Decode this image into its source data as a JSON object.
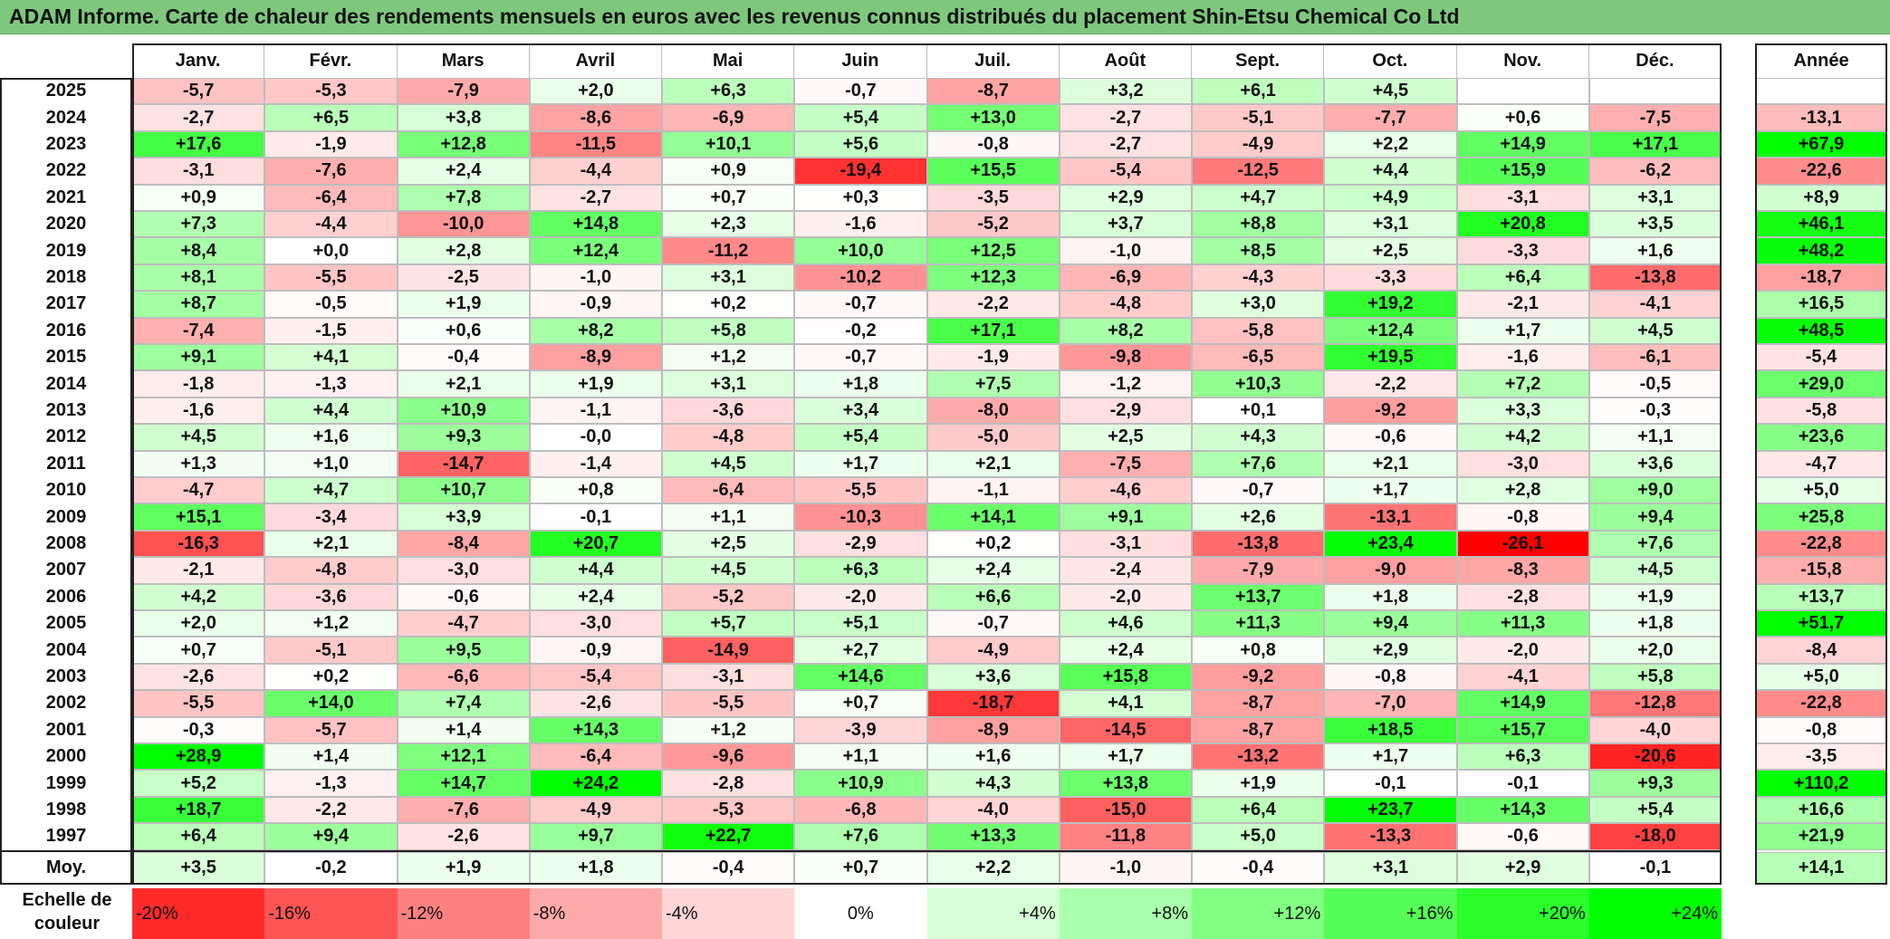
{
  "title": "ADAM Informe. Carte de chaleur des rendements mensuels en euros avec les revenus connus distribués du placement Shin-Etsu Chemical Co Ltd",
  "header": {
    "months": [
      "Janv.",
      "Févr.",
      "Mars",
      "Avril",
      "Mai",
      "Juin",
      "Juil.",
      "Août",
      "Sept.",
      "Oct.",
      "Nov.",
      "Déc."
    ],
    "year_total": "Année"
  },
  "scale": {
    "label": "Echelle de couleur",
    "steps": [
      "-20%",
      "-16%",
      "-12%",
      "-8%",
      "-4%",
      "0%",
      "+4%",
      "+8%",
      "+12%",
      "+16%",
      "+20%",
      "+24%"
    ],
    "values": [
      -20,
      -16,
      -12,
      -8,
      -4,
      0,
      4,
      8,
      12,
      16,
      20,
      24
    ]
  },
  "colors": {
    "negative": "#ff0000",
    "neutral": "#ffffff",
    "positive": "#00ff00",
    "title_bg": "#7dc87d"
  },
  "chart_data": {
    "type": "heatmap",
    "title": "ADAM Informe. Carte de chaleur des rendements mensuels en euros avec les revenus connus distribués du placement Shin-Etsu Chemical Co Ltd",
    "columns": [
      "Janv.",
      "Févr.",
      "Mars",
      "Avril",
      "Mai",
      "Juin",
      "Juil.",
      "Août",
      "Sept.",
      "Oct.",
      "Nov.",
      "Déc."
    ],
    "rows": [
      {
        "year": "2025",
        "values": [
          "-5,7",
          "-5,3",
          "-7,9",
          "+2,0",
          "+6,3",
          "-0,7",
          "-8,7",
          "+3,2",
          "+6,1",
          "+4,5",
          "",
          ""
        ],
        "annual": ""
      },
      {
        "year": "2024",
        "values": [
          "-2,7",
          "+6,5",
          "+3,8",
          "-8,6",
          "-6,9",
          "+5,4",
          "+13,0",
          "-2,7",
          "-5,1",
          "-7,7",
          "+0,6",
          "-7,5"
        ],
        "annual": "-13,1"
      },
      {
        "year": "2023",
        "values": [
          "+17,6",
          "-1,9",
          "+12,8",
          "-11,5",
          "+10,1",
          "+5,6",
          "-0,8",
          "-2,7",
          "-4,9",
          "+2,2",
          "+14,9",
          "+17,1"
        ],
        "annual": "+67,9"
      },
      {
        "year": "2022",
        "values": [
          "-3,1",
          "-7,6",
          "+2,4",
          "-4,4",
          "+0,9",
          "-19,4",
          "+15,5",
          "-5,4",
          "-12,5",
          "+4,4",
          "+15,9",
          "-6,2"
        ],
        "annual": "-22,6"
      },
      {
        "year": "2021",
        "values": [
          "+0,9",
          "-6,4",
          "+7,8",
          "-2,7",
          "+0,7",
          "+0,3",
          "-3,5",
          "+2,9",
          "+4,7",
          "+4,9",
          "-3,1",
          "+3,1"
        ],
        "annual": "+8,9"
      },
      {
        "year": "2020",
        "values": [
          "+7,3",
          "-4,4",
          "-10,0",
          "+14,8",
          "+2,3",
          "-1,6",
          "-5,2",
          "+3,7",
          "+8,8",
          "+3,1",
          "+20,8",
          "+3,5"
        ],
        "annual": "+46,1"
      },
      {
        "year": "2019",
        "values": [
          "+8,4",
          "+0,0",
          "+2,8",
          "+12,4",
          "-11,2",
          "+10,0",
          "+12,5",
          "-1,0",
          "+8,5",
          "+2,5",
          "-3,3",
          "+1,6"
        ],
        "annual": "+48,2"
      },
      {
        "year": "2018",
        "values": [
          "+8,1",
          "-5,5",
          "-2,5",
          "-1,0",
          "+3,1",
          "-10,2",
          "+12,3",
          "-6,9",
          "-4,3",
          "-3,3",
          "+6,4",
          "-13,8"
        ],
        "annual": "-18,7"
      },
      {
        "year": "2017",
        "values": [
          "+8,7",
          "-0,5",
          "+1,9",
          "-0,9",
          "+0,2",
          "-0,7",
          "-2,2",
          "-4,8",
          "+3,0",
          "+19,2",
          "-2,1",
          "-4,1"
        ],
        "annual": "+16,5"
      },
      {
        "year": "2016",
        "values": [
          "-7,4",
          "-1,5",
          "+0,6",
          "+8,2",
          "+5,8",
          "-0,2",
          "+17,1",
          "+8,2",
          "-5,8",
          "+12,4",
          "+1,7",
          "+4,5"
        ],
        "annual": "+48,5"
      },
      {
        "year": "2015",
        "values": [
          "+9,1",
          "+4,1",
          "-0,4",
          "-8,9",
          "+1,2",
          "-0,7",
          "-1,9",
          "-9,8",
          "-6,5",
          "+19,5",
          "-1,6",
          "-6,1"
        ],
        "annual": "-5,4"
      },
      {
        "year": "2014",
        "values": [
          "-1,8",
          "-1,3",
          "+2,1",
          "+1,9",
          "+3,1",
          "+1,8",
          "+7,5",
          "-1,2",
          "+10,3",
          "-2,2",
          "+7,2",
          "-0,5"
        ],
        "annual": "+29,0"
      },
      {
        "year": "2013",
        "values": [
          "-1,6",
          "+4,4",
          "+10,9",
          "-1,1",
          "-3,6",
          "+3,4",
          "-8,0",
          "-2,9",
          "+0,1",
          "-9,2",
          "+3,3",
          "-0,3"
        ],
        "annual": "-5,8"
      },
      {
        "year": "2012",
        "values": [
          "+4,5",
          "+1,6",
          "+9,3",
          "-0,0",
          "-4,8",
          "+5,4",
          "-5,0",
          "+2,5",
          "+4,3",
          "-0,6",
          "+4,2",
          "+1,1"
        ],
        "annual": "+23,6"
      },
      {
        "year": "2011",
        "values": [
          "+1,3",
          "+1,0",
          "-14,7",
          "-1,4",
          "+4,5",
          "+1,7",
          "+2,1",
          "-7,5",
          "+7,6",
          "+2,1",
          "-3,0",
          "+3,6"
        ],
        "annual": "-4,7"
      },
      {
        "year": "2010",
        "values": [
          "-4,7",
          "+4,7",
          "+10,7",
          "+0,8",
          "-6,4",
          "-5,5",
          "-1,1",
          "-4,6",
          "-0,7",
          "+1,7",
          "+2,8",
          "+9,0"
        ],
        "annual": "+5,0"
      },
      {
        "year": "2009",
        "values": [
          "+15,1",
          "-3,4",
          "+3,9",
          "-0,1",
          "+1,1",
          "-10,3",
          "+14,1",
          "+9,1",
          "+2,6",
          "-13,1",
          "-0,8",
          "+9,4"
        ],
        "annual": "+25,8"
      },
      {
        "year": "2008",
        "values": [
          "-16,3",
          "+2,1",
          "-8,4",
          "+20,7",
          "+2,5",
          "-2,9",
          "+0,2",
          "-3,1",
          "-13,8",
          "+23,4",
          "-26,1",
          "+7,6"
        ],
        "annual": "-22,8"
      },
      {
        "year": "2007",
        "values": [
          "-2,1",
          "-4,8",
          "-3,0",
          "+4,4",
          "+4,5",
          "+6,3",
          "+2,4",
          "-2,4",
          "-7,9",
          "-9,0",
          "-8,3",
          "+4,5"
        ],
        "annual": "-15,8"
      },
      {
        "year": "2006",
        "values": [
          "+4,2",
          "-3,6",
          "-0,6",
          "+2,4",
          "-5,2",
          "-2,0",
          "+6,6",
          "-2,0",
          "+13,7",
          "+1,8",
          "-2,8",
          "+1,9"
        ],
        "annual": "+13,7"
      },
      {
        "year": "2005",
        "values": [
          "+2,0",
          "+1,2",
          "-4,7",
          "-3,0",
          "+5,7",
          "+5,1",
          "-0,7",
          "+4,6",
          "+11,3",
          "+9,4",
          "+11,3",
          "+1,8"
        ],
        "annual": "+51,7"
      },
      {
        "year": "2004",
        "values": [
          "+0,7",
          "-5,1",
          "+9,5",
          "-0,9",
          "-14,9",
          "+2,7",
          "-4,9",
          "+2,4",
          "+0,8",
          "+2,9",
          "-2,0",
          "+2,0"
        ],
        "annual": "-8,4"
      },
      {
        "year": "2003",
        "values": [
          "-2,6",
          "+0,2",
          "-6,6",
          "-5,4",
          "-3,1",
          "+14,6",
          "+3,6",
          "+15,8",
          "-9,2",
          "-0,8",
          "-4,1",
          "+5,8"
        ],
        "annual": "+5,0"
      },
      {
        "year": "2002",
        "values": [
          "-5,5",
          "+14,0",
          "+7,4",
          "-2,6",
          "-5,5",
          "+0,7",
          "-18,7",
          "+4,1",
          "-8,7",
          "-7,0",
          "+14,9",
          "-12,8"
        ],
        "annual": "-22,8"
      },
      {
        "year": "2001",
        "values": [
          "-0,3",
          "-5,7",
          "+1,4",
          "+14,3",
          "+1,2",
          "-3,9",
          "-8,9",
          "-14,5",
          "-8,7",
          "+18,5",
          "+15,7",
          "-4,0"
        ],
        "annual": "-0,8"
      },
      {
        "year": "2000",
        "values": [
          "+28,9",
          "+1,4",
          "+12,1",
          "-6,4",
          "-9,6",
          "+1,1",
          "+1,6",
          "+1,7",
          "-13,2",
          "+1,7",
          "+6,3",
          "-20,6"
        ],
        "annual": "-3,5"
      },
      {
        "year": "1999",
        "values": [
          "+5,2",
          "-1,3",
          "+14,7",
          "+24,2",
          "-2,8",
          "+10,9",
          "+4,3",
          "+13,8",
          "+1,9",
          "-0,1",
          "-0,1",
          "+9,3"
        ],
        "annual": "+110,2"
      },
      {
        "year": "1998",
        "values": [
          "+18,7",
          "-2,2",
          "-7,6",
          "-4,9",
          "-5,3",
          "-6,8",
          "-4,0",
          "-15,0",
          "+6,4",
          "+23,7",
          "+14,3",
          "+5,4"
        ],
        "annual": "+16,6"
      },
      {
        "year": "1997",
        "values": [
          "+6,4",
          "+9,4",
          "-2,6",
          "+9,7",
          "+22,7",
          "+7,6",
          "+13,3",
          "-11,8",
          "+5,0",
          "-13,3",
          "-0,6",
          "-18,0"
        ],
        "annual": "+21,9"
      }
    ],
    "average": {
      "label": "Moy.",
      "values": [
        "+3,5",
        "-0,2",
        "+1,9",
        "+1,8",
        "-0,4",
        "+0,7",
        "+2,2",
        "-1,0",
        "-0,4",
        "+3,1",
        "+2,9",
        "-0,1"
      ],
      "annual": "+14,1"
    }
  }
}
